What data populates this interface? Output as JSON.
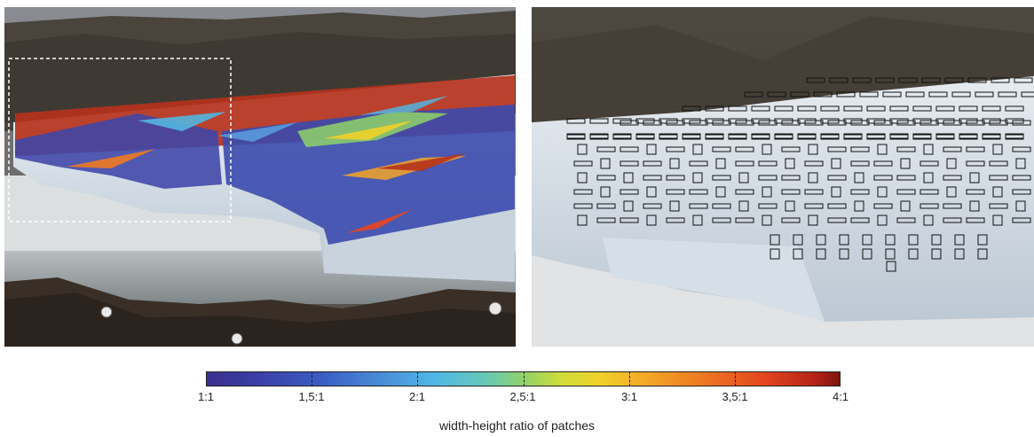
{
  "figure": {
    "left_panel": {
      "description_icon": "glacier-photo-with-ratio-overlay"
    },
    "right_panel": {
      "description_icon": "glacier-photo-with-patch-boxes"
    }
  },
  "colorbar": {
    "ticks": [
      "1:1",
      "1,5:1",
      "2:1",
      "2,5:1",
      "3:1",
      "3,5:1",
      "4:1"
    ],
    "title": "width-height ratio of patches",
    "colors": {
      "low": "#3b2f8c",
      "mid": "#8fd26a",
      "high": "#7e1410"
    }
  }
}
